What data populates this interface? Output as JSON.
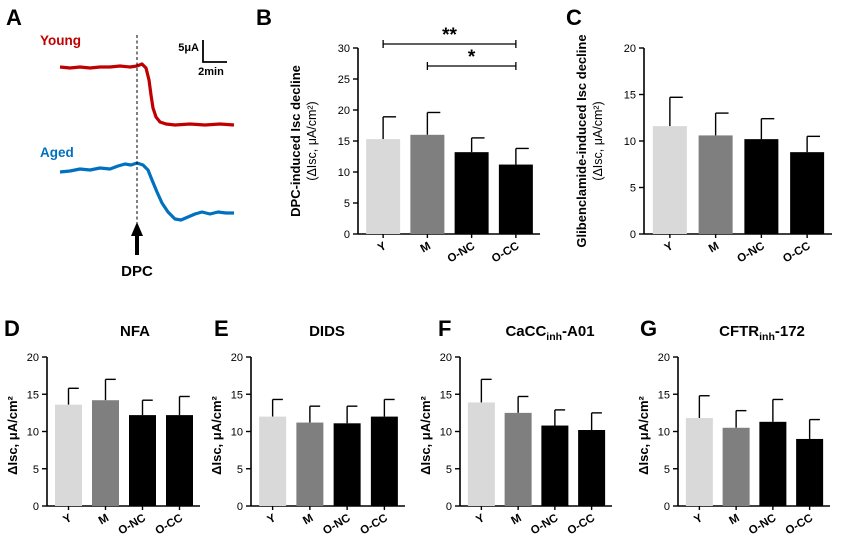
{
  "colors": {
    "Y": "#d9d9d9",
    "M": "#7f7f7f",
    "O-NC": "#000000",
    "O-CC": "#000000",
    "young": "#c00000",
    "aged": "#0070c0"
  },
  "panel_a": {
    "label": "A",
    "young_label": "Young",
    "aged_label": "Aged",
    "scale_y": "5μA",
    "scale_x": "2min",
    "marker": "DPC"
  },
  "chart_data": [
    {
      "id": "B",
      "label": "B",
      "type": "bar",
      "title": "",
      "ylabel_main": "DPC-induced Isc decline",
      "ylabel_sub": "(ΔIsc, μA/cm²)",
      "categories": [
        "Y",
        "M",
        "O-NC",
        "O-CC"
      ],
      "values": [
        15.3,
        16.0,
        13.2,
        11.2
      ],
      "errors": [
        3.6,
        3.6,
        2.3,
        2.6
      ],
      "ylim": [
        0,
        30
      ],
      "ticks": [
        0,
        5,
        10,
        15,
        20,
        25,
        30
      ],
      "significance": [
        {
          "from": 0,
          "to": 3,
          "label": "**"
        },
        {
          "from": 1,
          "to": 3,
          "label": "*"
        }
      ]
    },
    {
      "id": "C",
      "label": "C",
      "type": "bar",
      "title": "",
      "ylabel_main": "Glibenclamide-induced Isc decline",
      "ylabel_sub": "(ΔIsc, μA/cm²)",
      "categories": [
        "Y",
        "M",
        "O-NC",
        "O-CC"
      ],
      "values": [
        11.6,
        10.6,
        10.2,
        8.8
      ],
      "errors": [
        3.1,
        2.4,
        2.2,
        1.7
      ],
      "ylim": [
        0,
        20
      ],
      "ticks": [
        0,
        5,
        10,
        15,
        20
      ]
    },
    {
      "id": "D",
      "label": "D",
      "type": "bar",
      "title": "NFA",
      "ylabel": "ΔIsc, μA/cm²",
      "categories": [
        "Y",
        "M",
        "O-NC",
        "O-CC"
      ],
      "values": [
        13.6,
        14.2,
        12.2,
        12.2
      ],
      "errors": [
        2.2,
        2.8,
        2.0,
        2.5
      ],
      "ylim": [
        0,
        20
      ],
      "ticks": [
        0,
        5,
        10,
        15,
        20
      ]
    },
    {
      "id": "E",
      "label": "E",
      "type": "bar",
      "title": "DIDS",
      "ylabel": "ΔIsc, μA/cm²",
      "categories": [
        "Y",
        "M",
        "O-NC",
        "O-CC"
      ],
      "values": [
        12.0,
        11.2,
        11.1,
        12.0
      ],
      "errors": [
        2.3,
        2.2,
        2.3,
        2.3
      ],
      "ylim": [
        0,
        20
      ],
      "ticks": [
        0,
        5,
        10,
        15,
        20
      ]
    },
    {
      "id": "F",
      "label": "F",
      "type": "bar",
      "title": "CaCC",
      "title_sub": "inh",
      "title_suffix": "-A01",
      "ylabel": "ΔIsc, μA/cm²",
      "categories": [
        "Y",
        "M",
        "O-NC",
        "O-CC"
      ],
      "values": [
        13.9,
        12.5,
        10.8,
        10.2
      ],
      "errors": [
        3.1,
        2.2,
        2.1,
        2.3
      ],
      "ylim": [
        0,
        20
      ],
      "ticks": [
        0,
        5,
        10,
        15,
        20
      ]
    },
    {
      "id": "G",
      "label": "G",
      "type": "bar",
      "title": "CFTR",
      "title_sub": "inh",
      "title_suffix": "-172",
      "ylabel": "ΔIsc, μA/cm²",
      "categories": [
        "Y",
        "M",
        "O-NC",
        "O-CC"
      ],
      "values": [
        11.8,
        10.5,
        11.3,
        9.0
      ],
      "errors": [
        3.0,
        2.3,
        3.0,
        2.6
      ],
      "ylim": [
        0,
        20
      ],
      "ticks": [
        0,
        5,
        10,
        15,
        20
      ]
    }
  ]
}
